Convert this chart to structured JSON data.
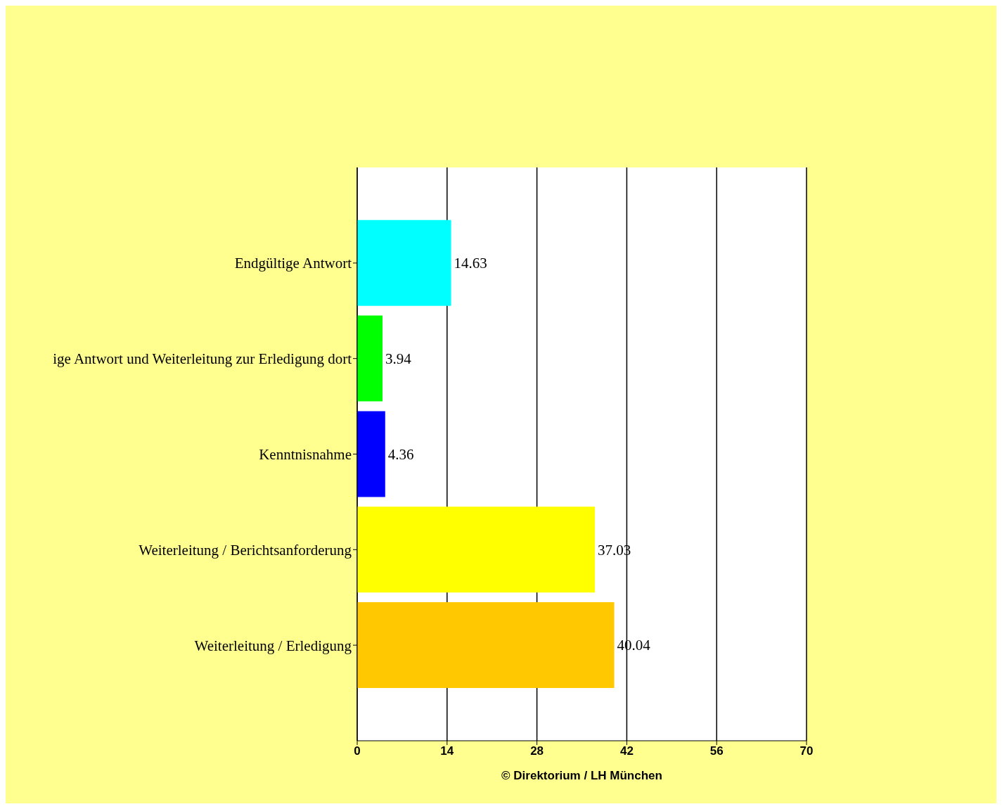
{
  "chart_data": {
    "type": "bar",
    "orientation": "horizontal",
    "categories": [
      "Endgültige Antwort",
      "ige Antwort und Weiterleitung zur Erledigung dort",
      "Kenntnisnahme",
      "Weiterleitung / Berichtsanforderung",
      "Weiterleitung / Erledigung"
    ],
    "values": [
      14.63,
      3.94,
      4.36,
      37.03,
      40.04
    ],
    "colors": [
      "#00ffff",
      "#00ff00",
      "#0000ff",
      "#ffff00",
      "#ffc800"
    ],
    "xlim": [
      0,
      70
    ],
    "xticks": [
      0,
      14,
      28,
      42,
      56,
      70
    ],
    "grid": "x",
    "data_labels": true,
    "annotations": [
      "© Direktorium / LH München"
    ]
  }
}
